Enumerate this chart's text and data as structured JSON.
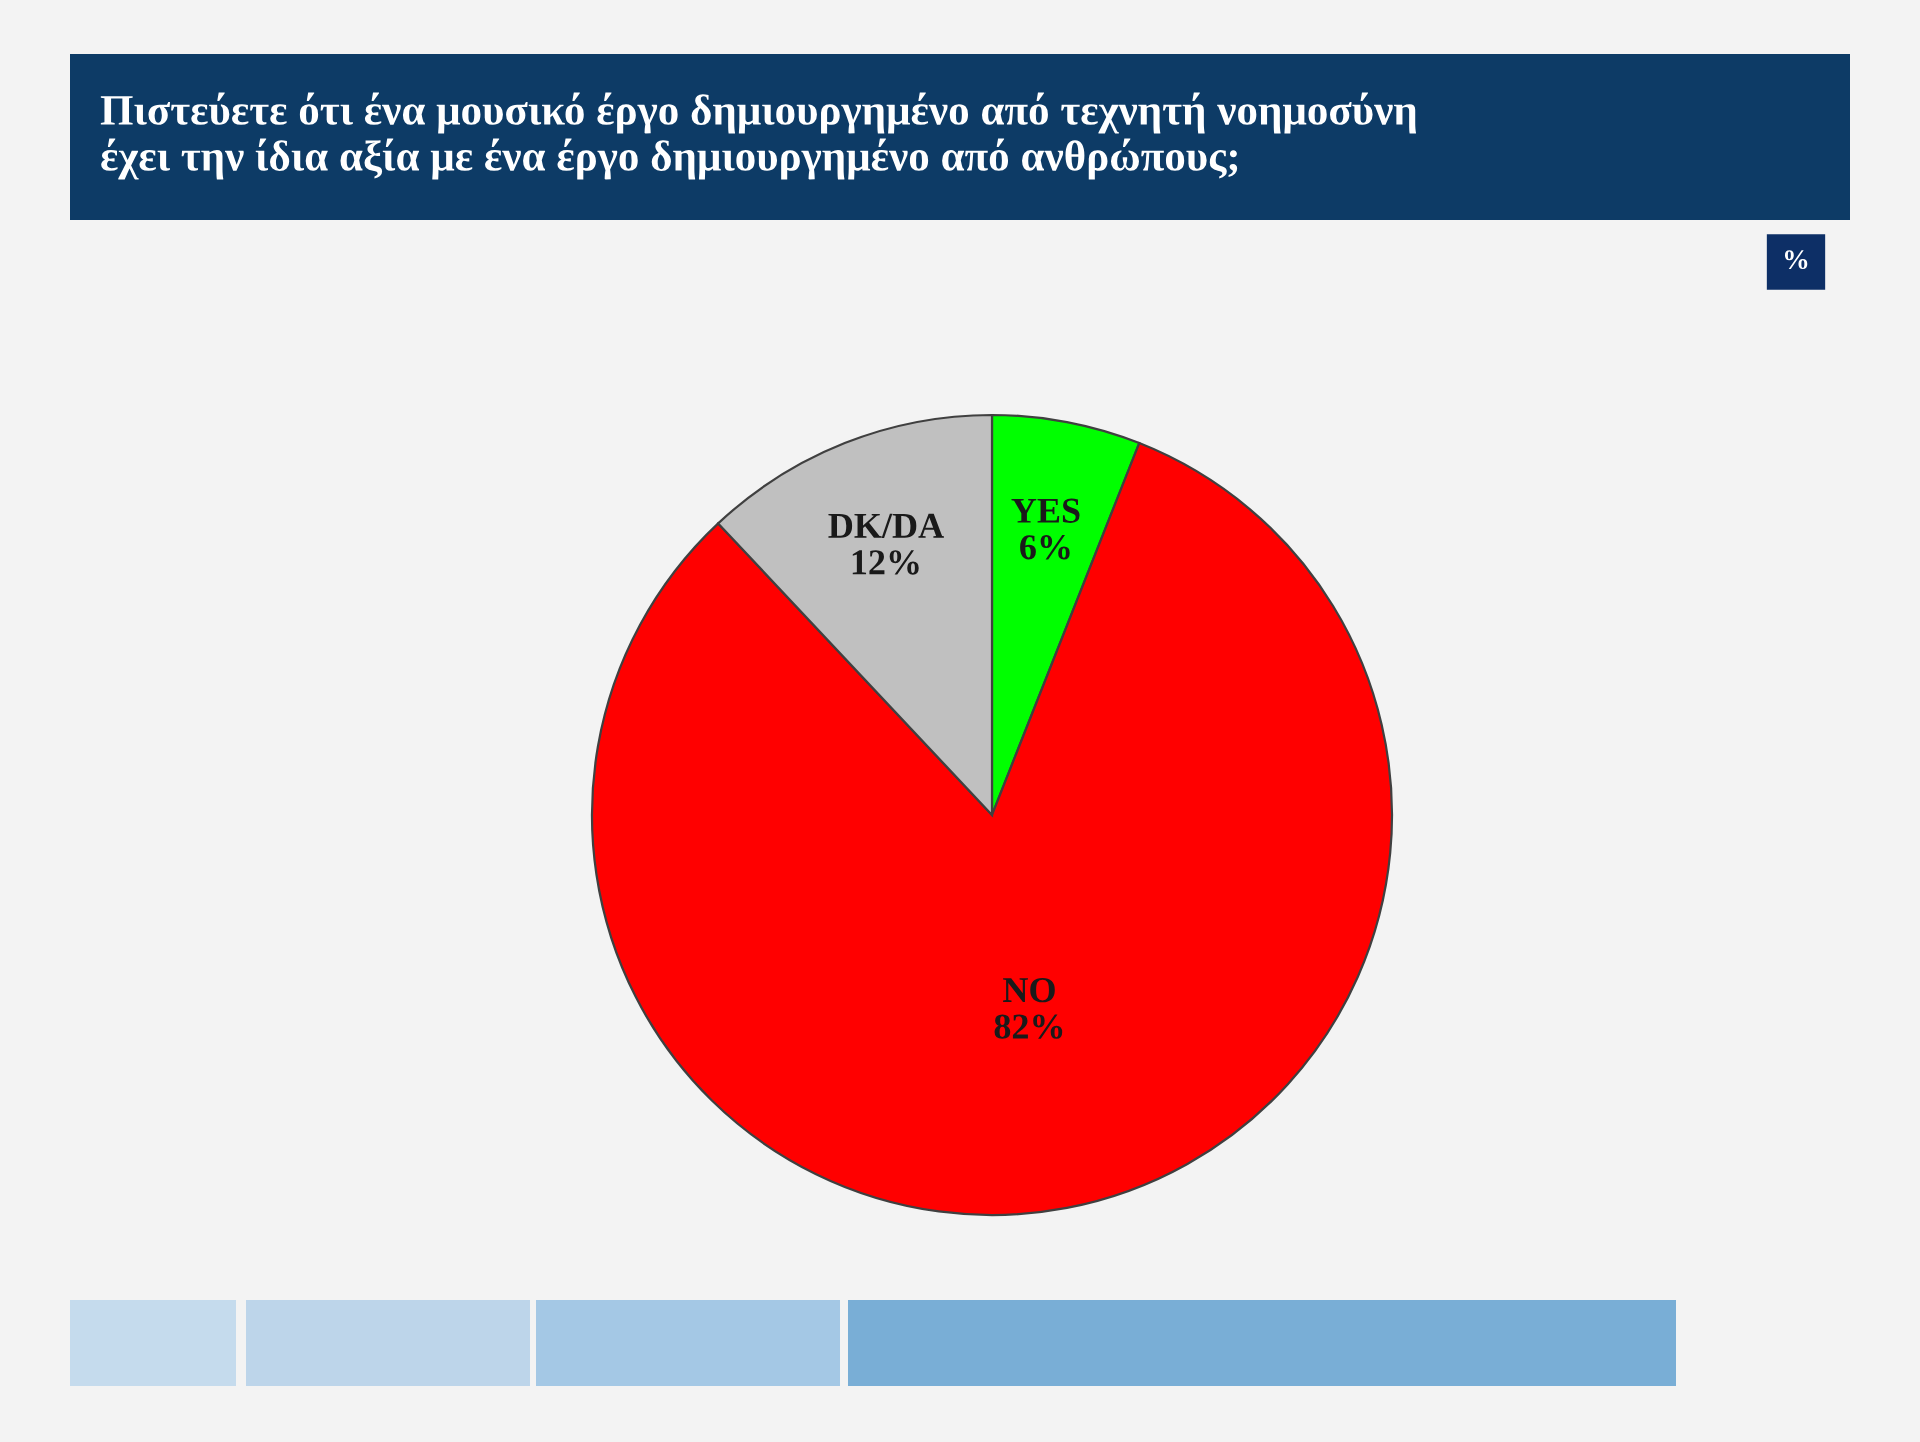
{
  "chart_data": {
    "type": "pie",
    "title": "Πιστεύετε ότι ένα μουσικό έργο δημιουργημένο από τεχνητή νοημοσύνη\nέχει την ίδια αξία με ένα έργο δημιουργημένο από ανθρώπους;",
    "subtitle": "%",
    "categories": [
      "YES",
      "NO",
      "DK/DA"
    ],
    "values": [
      6,
      82,
      12
    ],
    "colors": [
      "#00ff00",
      "#ff0000",
      "#c0c0c0"
    ],
    "value_labels": [
      "6%",
      "82%",
      "12%"
    ]
  }
}
